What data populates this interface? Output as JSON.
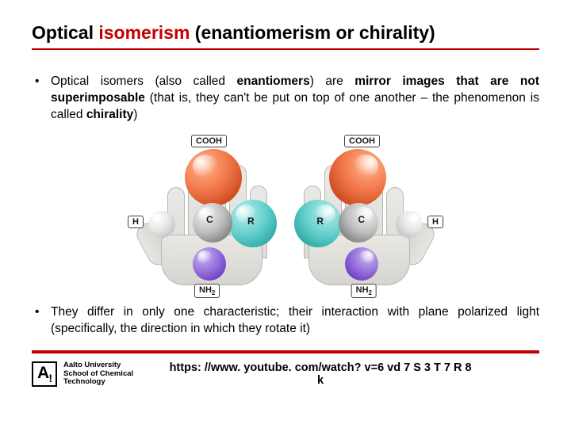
{
  "title": {
    "plain": "Optical ",
    "accent": "isomerism",
    "rest": " (enantiomerism or chirality)",
    "underline_color": "#c00000"
  },
  "bullets": [
    {
      "segments": [
        {
          "t": "Optical isomers (also called ",
          "b": false
        },
        {
          "t": "enantiomers",
          "b": true
        },
        {
          "t": ") are ",
          "b": false
        },
        {
          "t": "mirror images that are not superimposable",
          "b": true
        },
        {
          "t": " (that is, they can't be put on top of one another – the phenomenon is called ",
          "b": false
        },
        {
          "t": "chirality",
          "b": true
        },
        {
          "t": ")",
          "b": false
        }
      ]
    },
    {
      "segments": [
        {
          "t": "They differ in only one characteristic; their interaction with plane polarized light (specifically, the direction in which they rotate it)",
          "b": false
        }
      ]
    }
  ],
  "diagram": {
    "labels": {
      "cooh": "COOH",
      "h": "H",
      "c": "C",
      "r": "R",
      "nh2_base": "NH",
      "nh2_sub": "2"
    },
    "colors": {
      "top_atom": "#f2784b",
      "c_atom": "#bdbdbd",
      "h_atom": "#e6e6e6",
      "r_atom": "#66d1cd",
      "n_atom": "#9872dc",
      "hand": "#e4e2dc"
    }
  },
  "footer": {
    "logo_mark": "A",
    "logo_lines": [
      "Aalto University",
      "School of Chemical",
      "Technology"
    ],
    "link": "https: //www. youtube. com/watch? v=6 vd 7 S 3 T 7 R 8 k"
  },
  "rule_color": "#c00000"
}
